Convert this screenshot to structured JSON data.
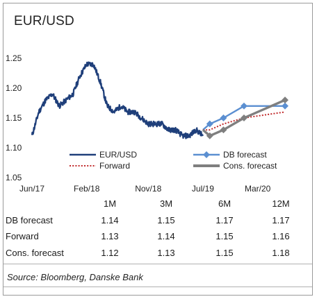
{
  "title": "EUR/USD",
  "source": "Source: Bloomberg, Danske Bank",
  "colors": {
    "eurusd": "#1f3f7a",
    "db": "#5b8fd1",
    "forward": "#c0282a",
    "cons": "#7f7f7f"
  },
  "chart_data": {
    "type": "line",
    "title": "EUR/USD",
    "ylim": [
      1.05,
      1.25
    ],
    "yticks": [
      "1.25",
      "1.20",
      "1.15",
      "1.10",
      "1.05"
    ],
    "xtick_labels": [
      "Jun/17",
      "Feb/18",
      "Nov/18",
      "Jul/19",
      "Mar/20"
    ],
    "legend": [
      "EUR/USD",
      "DB forecast",
      "Forward",
      "Cons. forecast"
    ],
    "legend_position": "bottom-inside",
    "grid": false,
    "series": [
      {
        "name": "EUR/USD",
        "style": "solid",
        "x": [
          "Jun/17",
          "Jul/17",
          "Aug/17",
          "Sep/17",
          "Oct/17",
          "Nov/17",
          "Dec/17",
          "Jan/18",
          "Feb/18",
          "Mar/18",
          "Apr/18",
          "May/18",
          "Jun/18",
          "Jul/18",
          "Aug/18",
          "Sep/18",
          "Oct/18",
          "Nov/18",
          "Dec/18",
          "Jan/19",
          "Feb/19",
          "Mar/19",
          "Apr/19",
          "May/19",
          "Jun/19",
          "Jul/19"
        ],
        "values": [
          1.12,
          1.16,
          1.18,
          1.19,
          1.17,
          1.18,
          1.19,
          1.22,
          1.24,
          1.24,
          1.21,
          1.17,
          1.16,
          1.17,
          1.16,
          1.16,
          1.15,
          1.14,
          1.14,
          1.14,
          1.13,
          1.13,
          1.12,
          1.12,
          1.13,
          1.12
        ]
      },
      {
        "name": "DB forecast",
        "style": "solid-markers",
        "x": [
          "Jul/19",
          "Aug/19",
          "Oct/19",
          "Jan/20",
          "Jul/20"
        ],
        "values": [
          1.13,
          1.14,
          1.15,
          1.17,
          1.17
        ]
      },
      {
        "name": "Forward",
        "style": "dotted",
        "x": [
          "Jul/19",
          "Aug/19",
          "Oct/19",
          "Jan/20",
          "Jul/20"
        ],
        "values": [
          1.13,
          1.13,
          1.14,
          1.15,
          1.16
        ]
      },
      {
        "name": "Cons. forecast",
        "style": "solid-markers",
        "x": [
          "Jul/19",
          "Aug/19",
          "Oct/19",
          "Jan/20",
          "Jul/20"
        ],
        "values": [
          1.13,
          1.12,
          1.13,
          1.15,
          1.18
        ]
      }
    ]
  },
  "table": {
    "headers": [
      "1M",
      "3M",
      "6M",
      "12M"
    ],
    "rows": [
      {
        "label": "DB forecast",
        "values": [
          "1.14",
          "1.15",
          "1.17",
          "1.17"
        ]
      },
      {
        "label": "Forward",
        "values": [
          "1.13",
          "1.14",
          "1.15",
          "1.16"
        ]
      },
      {
        "label": "Cons. forecast",
        "values": [
          "1.12",
          "1.13",
          "1.15",
          "1.18"
        ]
      }
    ]
  }
}
